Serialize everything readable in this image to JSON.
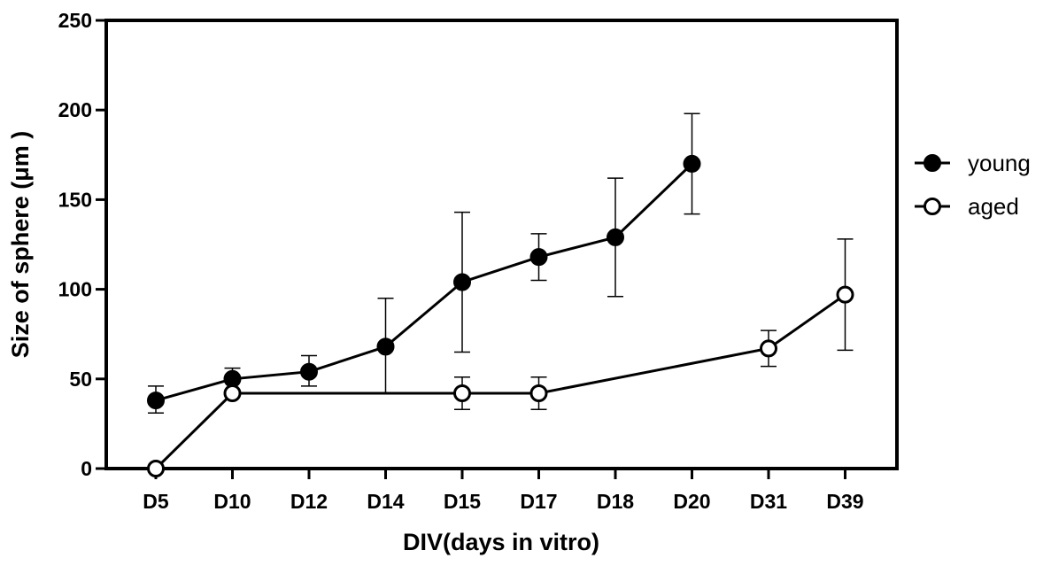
{
  "chart_data": {
    "type": "line",
    "xlabel": "DIV(days in vitro)",
    "ylabel": "Size of sphere (μm )",
    "categories": [
      "D5",
      "D10",
      "D12",
      "D14",
      "D15",
      "D17",
      "D18",
      "D20",
      "D31",
      "D39"
    ],
    "ylim": [
      0,
      250
    ],
    "yticks": [
      0,
      50,
      100,
      150,
      200,
      250
    ],
    "ytick_labels": [
      "0",
      "50",
      "100",
      "150",
      "200",
      "250"
    ],
    "grid": false,
    "legend_position": "right",
    "series": [
      {
        "name": "young",
        "marker": "filled-circle",
        "color": "#000000",
        "values": [
          38,
          50,
          54,
          68,
          104,
          118,
          129,
          170,
          null,
          null
        ],
        "error_upper": [
          46,
          56,
          63,
          95,
          143,
          131,
          162,
          198,
          null,
          null
        ],
        "error_lower": [
          31,
          null,
          46,
          42,
          65,
          105,
          96,
          142,
          null,
          null
        ]
      },
      {
        "name": "aged",
        "marker": "open-circle",
        "color": "#000000",
        "values": [
          0,
          42,
          null,
          null,
          42,
          42,
          null,
          null,
          67,
          97
        ],
        "error_upper": [
          null,
          null,
          null,
          null,
          51,
          51,
          null,
          null,
          77,
          128
        ],
        "error_lower": [
          null,
          null,
          null,
          null,
          33,
          33,
          null,
          null,
          57,
          66
        ]
      }
    ]
  }
}
